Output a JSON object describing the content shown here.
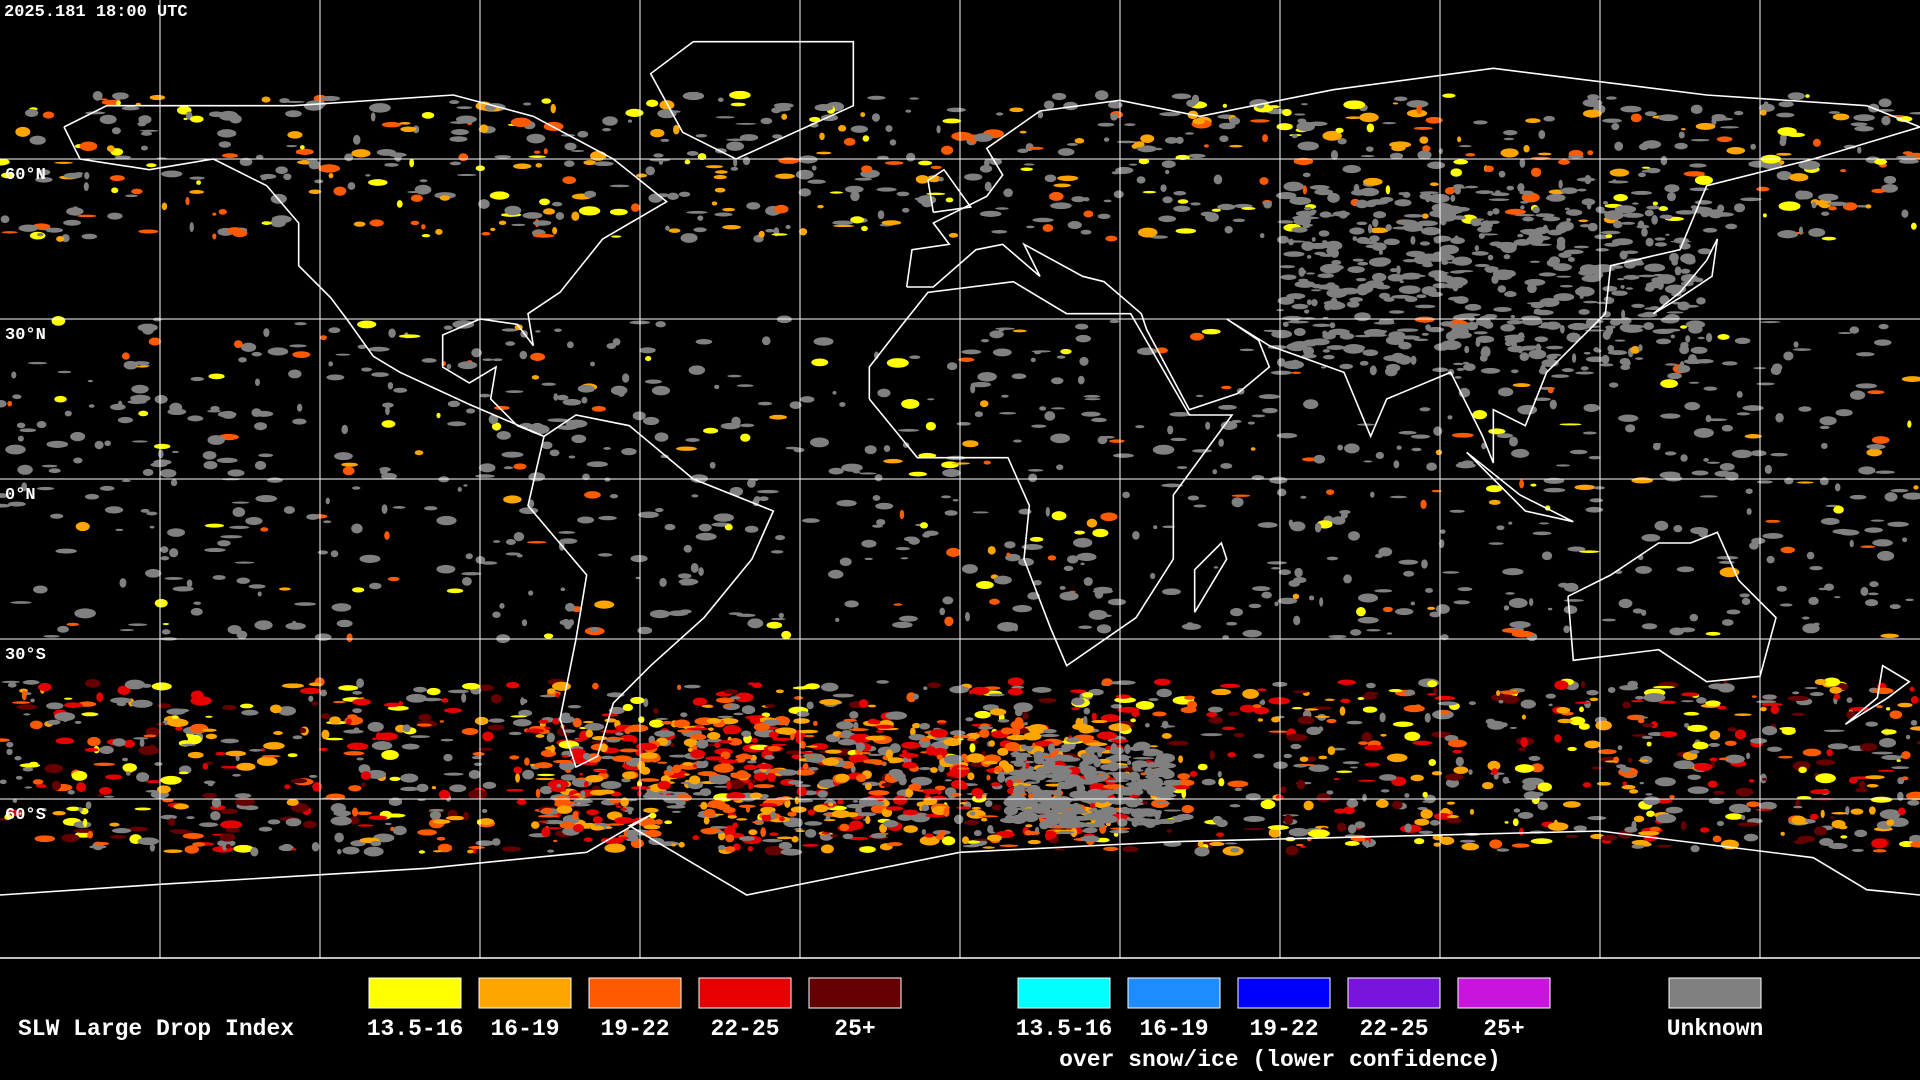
{
  "header": {
    "timestamp": "2025.181 18:00 UTC"
  },
  "latitude_labels": [
    "60°N",
    "30°N",
    "0°N",
    "30°S",
    "60°S"
  ],
  "legend": {
    "title": "SLW Large Drop Index",
    "groups": [
      {
        "items": [
          {
            "label": "13.5-16",
            "color": "#ffff00"
          },
          {
            "label": "16-19",
            "color": "#ffa500"
          },
          {
            "label": "19-22",
            "color": "#ff5a00"
          },
          {
            "label": "22-25",
            "color": "#e60000"
          },
          {
            "label": "25+",
            "color": "#640000"
          }
        ]
      },
      {
        "items": [
          {
            "label": "13.5-16",
            "color": "#00ffff"
          },
          {
            "label": "16-19",
            "color": "#1e8cff"
          },
          {
            "label": "19-22",
            "color": "#0000ff"
          },
          {
            "label": "22-25",
            "color": "#7814dc"
          },
          {
            "label": "25+",
            "color": "#c814dc"
          }
        ],
        "caption": "over snow/ice (lower confidence)"
      }
    ],
    "unknown": {
      "label": "Unknown",
      "color": "#808080"
    }
  }
}
